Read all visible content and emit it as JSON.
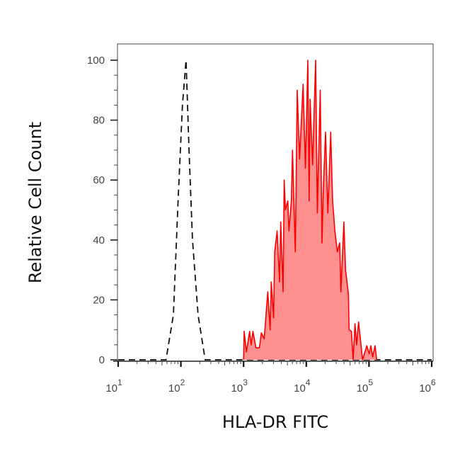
{
  "chart_data": {
    "type": "area",
    "title": "",
    "xlabel": "HLA-DR FITC",
    "ylabel": "Relative Cell Count",
    "x_scale": "log",
    "xlim": [
      10,
      1000000
    ],
    "ylim": [
      0,
      100
    ],
    "x_tick_labels": [
      {
        "base": "10",
        "exp": "1",
        "value": 10
      },
      {
        "base": "10",
        "exp": "2",
        "value": 100
      },
      {
        "base": "10",
        "exp": "3",
        "value": 1000
      },
      {
        "base": "10",
        "exp": "4",
        "value": 10000
      },
      {
        "base": "10",
        "exp": "5",
        "value": 100000
      },
      {
        "base": "10",
        "exp": "6",
        "value": 1000000
      }
    ],
    "y_ticks": [
      0,
      20,
      40,
      60,
      80,
      100
    ],
    "y_tick_labels": [
      "0",
      "20",
      "40",
      "60",
      "80",
      "100"
    ],
    "grid": false,
    "series": [
      {
        "style": "dashed-line",
        "color": "#111111",
        "x": [
          10,
          58,
          76,
          91,
          106,
          121,
          135,
          153,
          188,
          244,
          1000000
        ],
        "y": [
          0,
          0,
          15,
          55,
          85,
          100,
          70,
          40,
          15,
          0,
          0
        ]
      },
      {
        "style": "filled",
        "color": "#ff0000",
        "fill": "#ff9090",
        "x": [
          1000,
          1020,
          1110,
          1250,
          1320,
          1410,
          1570,
          1790,
          1920,
          2130,
          2430,
          2650,
          2760,
          3010,
          3140,
          3430,
          3740,
          3910,
          4260,
          4450,
          4650,
          5070,
          5290,
          5780,
          6030,
          6690,
          7170,
          7810,
          8900,
          9700,
          10600,
          11100,
          11500,
          12600,
          14100,
          15000,
          16700,
          17800,
          18600,
          20300,
          22100,
          24500,
          26300,
          28600,
          31300,
          34100,
          35600,
          39800,
          42300,
          46900,
          48200,
          52500,
          55800,
          59800,
          63500,
          68200,
          78900,
          92200,
          100700,
          106900,
          114600,
          125000,
          132700
        ],
        "y": [
          0,
          9.5,
          2.6,
          9.5,
          5,
          9.5,
          4,
          4,
          9,
          7,
          22.7,
          10,
          26,
          14,
          36,
          43,
          26,
          46,
          22.7,
          60,
          50,
          53,
          43,
          53,
          70,
          36,
          90,
          67,
          92,
          64,
          100,
          53,
          87,
          65,
          100,
          49,
          90,
          39,
          56,
          76,
          49,
          76,
          53,
          43,
          36,
          39,
          22.7,
          46,
          30,
          22,
          10,
          9.5,
          0,
          12,
          5,
          12.6,
          0,
          4.7,
          2,
          4.7,
          1,
          4.7,
          0
        ]
      }
    ]
  }
}
